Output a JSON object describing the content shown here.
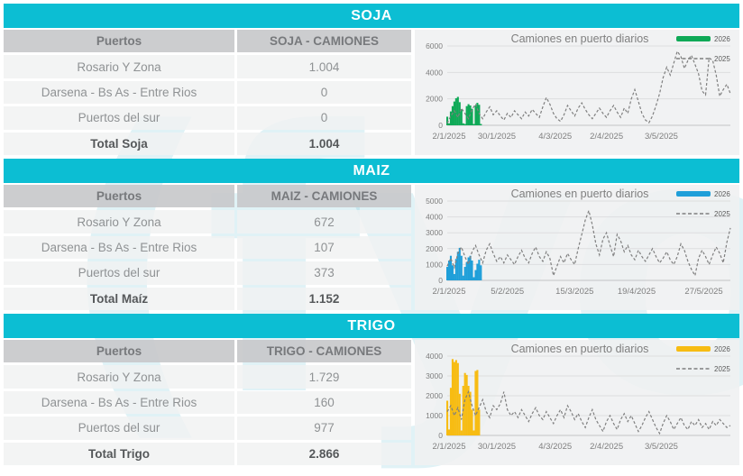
{
  "watermark": {
    "text": "(fyo"
  },
  "colors": {
    "accent_cyan": "#0CBED3",
    "soja_green": "#0FA957",
    "maiz_blue": "#1F9FD9",
    "trigo_yellow": "#F7BC13",
    "line_gray": "#7F7F7F",
    "grid_gray": "#DDDEDF"
  },
  "sections": [
    {
      "title": "SOJA",
      "table": {
        "headers": [
          "Puertos",
          "SOJA - CAMIONES"
        ],
        "rows": [
          [
            "Rosario Y Zona",
            "1.004"
          ],
          [
            "Darsena - Bs As - Entre Rios",
            "0"
          ],
          [
            "Puertos del sur",
            "0"
          ]
        ],
        "total": [
          "Total Soja",
          "1.004"
        ]
      }
    },
    {
      "title": "MAIZ",
      "table": {
        "headers": [
          "Puertos",
          "MAIZ - CAMIONES"
        ],
        "rows": [
          [
            "Rosario Y Zona",
            "672"
          ],
          [
            "Darsena - Bs As - Entre Rios",
            "107"
          ],
          [
            "Puertos del sur",
            "373"
          ]
        ],
        "total": [
          "Total Maíz",
          "1.152"
        ]
      }
    },
    {
      "title": "TRIGO",
      "table": {
        "headers": [
          "Puertos",
          "TRIGO - CAMIONES"
        ],
        "rows": [
          [
            "Rosario Y Zona",
            "1.729"
          ],
          [
            "Darsena - Bs As - Entre Rios",
            "160"
          ],
          [
            "Puertos del sur",
            "977"
          ]
        ],
        "total": [
          "Total Trigo",
          "2.866"
        ]
      }
    }
  ],
  "chart_data": [
    {
      "type": "bar",
      "title": "Camiones en puerto diarios",
      "ylim": [
        0,
        6000
      ],
      "yticks": [
        0,
        2000,
        4000,
        6000
      ],
      "total_days": 160,
      "grid": true,
      "legend_position": "top-right",
      "xticks": [
        {
          "label": "2/1/2025",
          "day": 0
        },
        {
          "label": "30/1/2025",
          "day": 28
        },
        {
          "label": "4/3/2025",
          "day": 61
        },
        {
          "label": "2/4/2025",
          "day": 90
        },
        {
          "label": "3/5/2025",
          "day": 121
        }
      ],
      "series": [
        {
          "name": "2026",
          "type": "bar",
          "color": "#0FA957",
          "step_days": 1,
          "start_day": 0,
          "values": [
            650,
            150,
            1050,
            1450,
            1800,
            2050,
            2150,
            1750,
            1200,
            150,
            100,
            1450,
            1600,
            1500,
            1250,
            100,
            1500,
            1700,
            1550,
            100,
            0,
            0,
            0,
            0,
            0,
            0,
            0,
            0
          ]
        },
        {
          "name": "2025",
          "type": "line-dashed",
          "color": "#7F7F7F",
          "step_days": 2,
          "start_day": 0,
          "values": [
            150,
            700,
            1100,
            600,
            1300,
            900,
            500,
            1200,
            1600,
            900,
            500,
            1000,
            1400,
            800,
            1100,
            700,
            400,
            900,
            600,
            1100,
            800,
            500,
            1000,
            700,
            1200,
            900,
            600,
            1400,
            2100,
            1600,
            900,
            500,
            300,
            800,
            1500,
            1100,
            700,
            1300,
            1700,
            1200,
            800,
            500,
            900,
            1300,
            900,
            600,
            1100,
            1500,
            1000,
            600,
            1300,
            900,
            2000,
            2700,
            1800,
            900,
            400,
            200,
            700,
            1500,
            2400,
            3600,
            4400,
            3800,
            4700,
            5600,
            5200,
            4300,
            4900,
            5300,
            4600,
            3900,
            2600,
            2300,
            5100,
            4900,
            3800,
            2200,
            2700,
            3100,
            2400
          ]
        }
      ]
    },
    {
      "type": "bar",
      "title": "Camiones en puerto diarios",
      "ylim": [
        0,
        5000
      ],
      "yticks": [
        0,
        1000,
        2000,
        3000,
        4000,
        5000
      ],
      "total_days": 160,
      "grid": true,
      "legend_position": "top-right",
      "xticks": [
        {
          "label": "2/1/2025",
          "day": 0
        },
        {
          "label": "5/2/2025",
          "day": 34
        },
        {
          "label": "15/3/2025",
          "day": 72
        },
        {
          "label": "19/4/2025",
          "day": 107
        },
        {
          "label": "27/5/2025",
          "day": 145
        }
      ],
      "series": [
        {
          "name": "2026",
          "type": "bar",
          "color": "#1F9FD9",
          "step_days": 1,
          "start_day": 0,
          "values": [
            850,
            1250,
            1550,
            950,
            400,
            1350,
            1800,
            2050,
            1550,
            300,
            850,
            1150,
            1450,
            1550,
            1250,
            200,
            650,
            1050,
            1300,
            950,
            0
          ]
        },
        {
          "name": "2025",
          "type": "line-dashed",
          "color": "#7F7F7F",
          "step_days": 2,
          "start_day": 0,
          "values": [
            900,
            1400,
            800,
            1700,
            2100,
            1500,
            1000,
            1800,
            2200,
            1600,
            1100,
            1900,
            2300,
            1700,
            1200,
            1500,
            1100,
            1600,
            1300,
            1000,
            1500,
            1900,
            1400,
            1100,
            1700,
            2100,
            1500,
            1200,
            1800,
            1400,
            300,
            900,
            1500,
            1100,
            1700,
            1300,
            1000,
            2000,
            2900,
            3800,
            4400,
            3500,
            2300,
            1600,
            2600,
            3000,
            2200,
            1500,
            2900,
            2500,
            1800,
            2200,
            1600,
            1300,
            1900,
            1500,
            1200,
            1600,
            2000,
            1500,
            1100,
            1400,
            1800,
            1300,
            1000,
            1500,
            2300,
            1900,
            1200,
            700,
            300,
            1400,
            1900,
            1500,
            1000,
            1600,
            2100,
            1700,
            1100,
            2400,
            3300
          ]
        }
      ]
    },
    {
      "type": "bar",
      "title": "Camiones en puerto diarios",
      "ylim": [
        0,
        4000
      ],
      "yticks": [
        0,
        1000,
        2000,
        3000,
        4000
      ],
      "total_days": 160,
      "grid": true,
      "legend_position": "top-right",
      "xticks": [
        {
          "label": "2/1/2025",
          "day": 0
        },
        {
          "label": "30/1/2025",
          "day": 28
        },
        {
          "label": "4/3/2025",
          "day": 61
        },
        {
          "label": "2/4/2025",
          "day": 90
        },
        {
          "label": "3/5/2025",
          "day": 121
        }
      ],
      "series": [
        {
          "name": "2026",
          "type": "bar",
          "color": "#F7BC13",
          "step_days": 1,
          "start_day": 0,
          "values": [
            1750,
            300,
            2400,
            3850,
            3700,
            3800,
            3650,
            2100,
            250,
            2500,
            3150,
            3050,
            2500,
            2200,
            1300,
            250,
            3250,
            3300,
            1300
          ]
        },
        {
          "name": "2025",
          "type": "line-dashed",
          "color": "#7F7F7F",
          "step_days": 2,
          "start_day": 0,
          "values": [
            1200,
            1500,
            1000,
            1400,
            800,
            1800,
            2200,
            1500,
            1000,
            1400,
            1800,
            1200,
            900,
            1500,
            1300,
            1600,
            2200,
            1300,
            1000,
            1200,
            900,
            1300,
            1000,
            700,
            1100,
            1400,
            1000,
            800,
            1200,
            900,
            600,
            1000,
            1300,
            900,
            1500,
            1200,
            800,
            1100,
            700,
            400,
            900,
            1300,
            800,
            500,
            200,
            700,
            1000,
            600,
            300,
            800,
            1100,
            700,
            1000,
            600,
            200,
            500,
            900,
            1200,
            800,
            400,
            100,
            600,
            1000,
            700,
            300,
            600,
            900,
            500,
            300,
            700,
            500,
            800,
            400,
            600,
            300,
            700,
            500,
            800,
            600,
            400,
            500
          ]
        }
      ]
    }
  ]
}
